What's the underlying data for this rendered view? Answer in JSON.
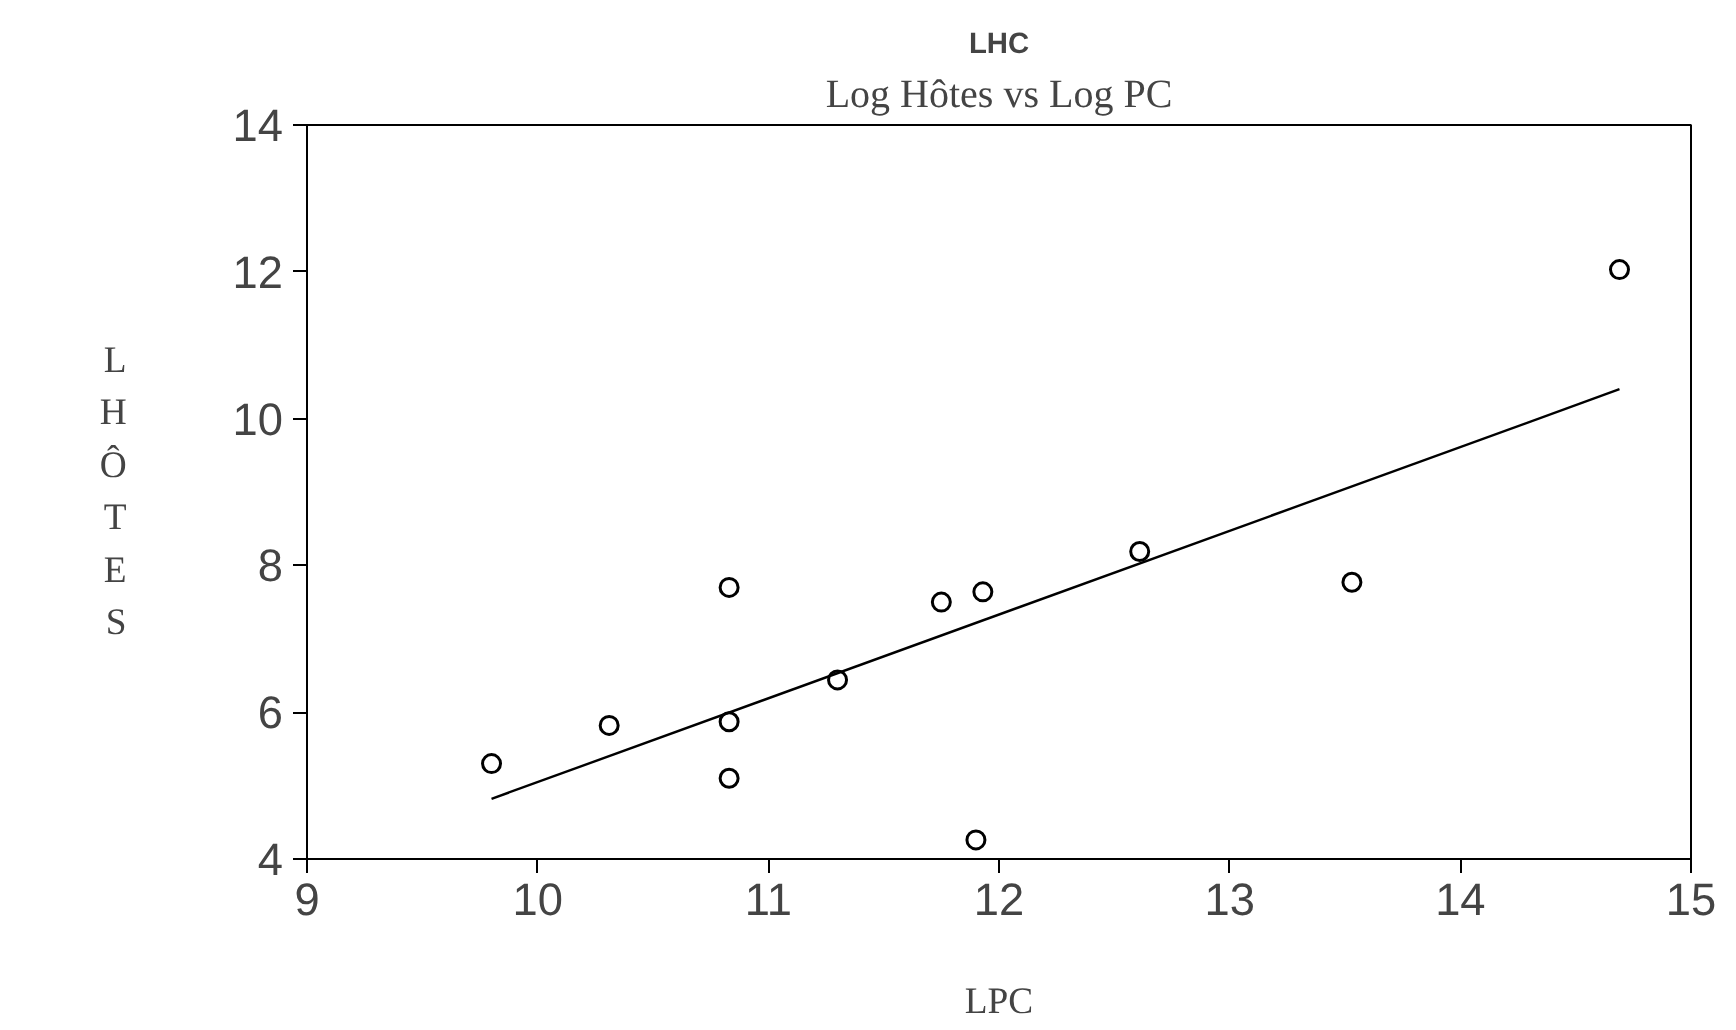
{
  "chart_data": {
    "type": "scatter",
    "title": "Log Hôtes vs Log PC",
    "xlabel": "LPC",
    "ylabel": "LHÔTES",
    "annotations": [
      "LHC"
    ],
    "xlim": [
      9,
      15
    ],
    "xticks": [
      9,
      10,
      11,
      12,
      13,
      14,
      15
    ],
    "ylim": [
      4,
      14
    ],
    "yticks": [
      4,
      6,
      8,
      10,
      12,
      14
    ],
    "grid": false,
    "series": [
      {
        "type": "scatter",
        "marker": "circle",
        "color": "#000000",
        "x": [
          9.8,
          10.31,
          10.83,
          10.83,
          10.83,
          11.3,
          11.75,
          11.93,
          11.9,
          12.61,
          13.53,
          14.69
        ],
        "values": [
          5.3,
          5.82,
          7.7,
          5.87,
          5.1,
          6.44,
          7.5,
          7.64,
          4.26,
          8.19,
          7.77,
          12.03
        ]
      },
      {
        "type": "line",
        "color": "#000000",
        "x": [
          9.8,
          14.69
        ],
        "values": [
          4.82,
          10.4
        ]
      }
    ]
  }
}
